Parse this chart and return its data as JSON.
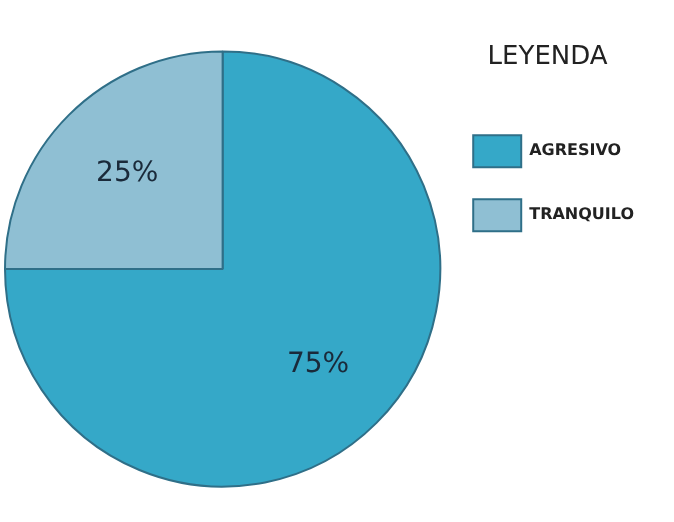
{
  "chart_data": {
    "type": "pie",
    "legend_title": "LEYENDA",
    "categories": [
      "AGRESIVO",
      "TRANQUILO"
    ],
    "values": [
      75,
      25
    ],
    "colors": [
      "#35a8c8",
      "#8fbfd3"
    ],
    "value_labels": [
      "75%",
      "25%"
    ],
    "legend": "top right"
  }
}
